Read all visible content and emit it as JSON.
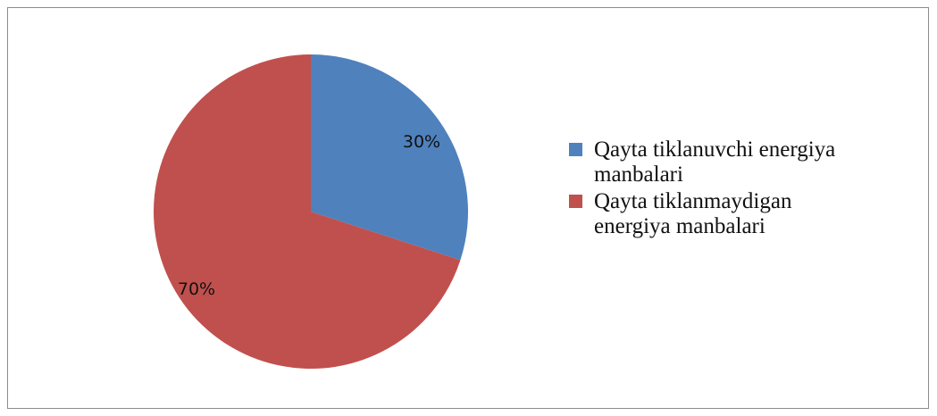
{
  "chart_data": {
    "type": "pie",
    "title": "",
    "categories": [
      "Qayta tiklanuvchi energiya manbalari",
      "Qayta tiklanmaydigan energiya manbalari"
    ],
    "values": [
      30,
      70
    ],
    "data_labels": [
      "30%",
      "70%"
    ],
    "colors": [
      "#4f81bd",
      "#c0504d"
    ],
    "legend": {
      "placement": "right",
      "entries": [
        {
          "line1": "Qayta tiklanuvchi energiya",
          "line2": "manbalari"
        },
        {
          "line1": "Qayta tiklanmaydigan",
          "line2": "energiya manbalari"
        }
      ]
    },
    "start_angle": "top, clockwise"
  }
}
